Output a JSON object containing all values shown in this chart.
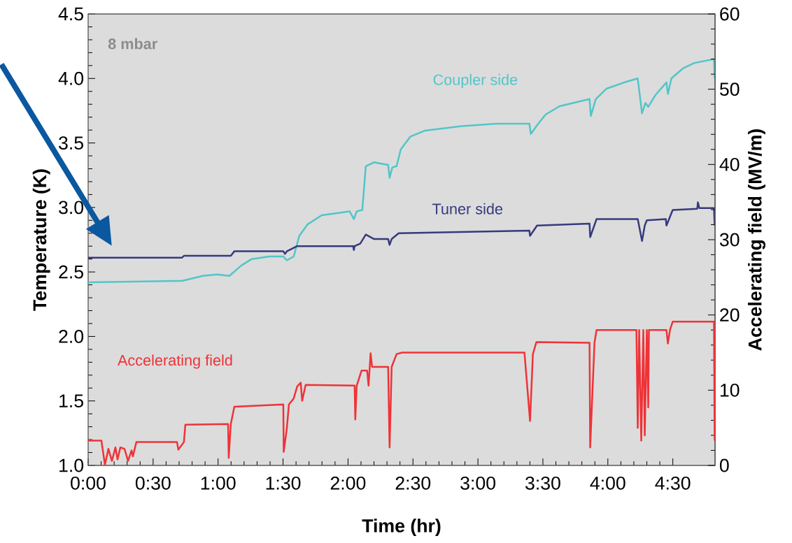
{
  "chart_data": {
    "type": "line",
    "xlabel": "Time (hr)",
    "ylabel": "Temperature (K)",
    "y2label": "Accelerating field (MV/m)",
    "xlim": [
      0,
      4.825
    ],
    "xticks": [
      {
        "value": 0,
        "label": "0:00"
      },
      {
        "value": 0.5,
        "label": "0:30"
      },
      {
        "value": 1,
        "label": "1:00"
      },
      {
        "value": 1.5,
        "label": "1:30"
      },
      {
        "value": 2,
        "label": "2:00"
      },
      {
        "value": 2.5,
        "label": "2:30"
      },
      {
        "value": 3,
        "label": "3:00"
      },
      {
        "value": 3.5,
        "label": "3:30"
      },
      {
        "value": 4,
        "label": "4:00"
      },
      {
        "value": 4.5,
        "label": "4:30"
      }
    ],
    "ylim": [
      1,
      4.5
    ],
    "yticks": [
      {
        "value": 1,
        "label": "1.0"
      },
      {
        "value": 1.5,
        "label": "1.5"
      },
      {
        "value": 2,
        "label": "2.0"
      },
      {
        "value": 2.5,
        "label": "2.5"
      },
      {
        "value": 3,
        "label": "3.0"
      },
      {
        "value": 3.5,
        "label": "3.5"
      },
      {
        "value": 4,
        "label": "4.0"
      },
      {
        "value": 4.5,
        "label": "4.5"
      }
    ],
    "y2lim": [
      0,
      60
    ],
    "y2ticks": [
      0,
      10,
      20,
      30,
      40,
      50,
      60
    ],
    "annotations": [
      "8 mbar"
    ],
    "series": [
      {
        "name": "Coupler side",
        "color": "#52c5c8",
        "x": [
          0,
          0.667,
          0.721,
          0.883,
          0.99,
          1.087,
          1.179,
          1.259,
          1.394,
          1.502,
          1.529,
          1.582,
          1.625,
          1.69,
          1.798,
          2.013,
          2.045,
          2.067,
          2.11,
          2.137,
          2.201,
          2.309,
          2.32,
          2.341,
          2.374,
          2.406,
          2.481,
          2.589,
          2.874,
          3.143,
          3.396,
          3.407,
          3.45,
          3.52,
          3.628,
          3.859,
          3.869,
          3.907,
          3.988,
          4.128,
          4.23,
          4.263,
          4.289,
          4.311,
          4.365,
          4.451,
          4.462,
          4.489,
          4.58,
          4.666,
          4.817,
          4.822
        ],
        "values": [
          2.42,
          2.43,
          2.43,
          2.47,
          2.48,
          2.47,
          2.55,
          2.6,
          2.62,
          2.62,
          2.59,
          2.62,
          2.78,
          2.87,
          2.94,
          2.97,
          2.91,
          2.97,
          2.98,
          3.32,
          3.35,
          3.33,
          3.23,
          3.31,
          3.32,
          3.45,
          3.55,
          3.595,
          3.63,
          3.65,
          3.65,
          3.57,
          3.63,
          3.72,
          3.785,
          3.84,
          3.71,
          3.84,
          3.92,
          3.97,
          4.0,
          3.73,
          3.81,
          3.78,
          3.87,
          3.97,
          3.88,
          4.0,
          4.08,
          4.12,
          4.15,
          4.0
        ]
      },
      {
        "name": "Tuner side",
        "color": "#363a7e",
        "x": [
          0,
          0.721,
          0.737,
          1.098,
          1.125,
          1.502,
          1.515,
          1.529,
          1.609,
          2.04,
          2.045,
          2.051,
          2.094,
          2.137,
          2.201,
          2.309,
          2.32,
          2.336,
          2.39,
          3.396,
          3.401,
          3.455,
          3.859,
          3.864,
          3.913,
          4.23,
          4.263,
          4.284,
          4.3,
          4.446,
          4.451,
          4.499,
          4.688,
          4.693,
          4.704,
          4.817,
          4.822
        ],
        "values": [
          2.61,
          2.61,
          2.625,
          2.625,
          2.66,
          2.66,
          2.64,
          2.66,
          2.7,
          2.7,
          2.67,
          2.7,
          2.72,
          2.79,
          2.755,
          2.755,
          2.71,
          2.755,
          2.8,
          2.82,
          2.78,
          2.86,
          2.875,
          2.77,
          2.91,
          2.91,
          2.74,
          2.86,
          2.9,
          2.91,
          2.86,
          2.98,
          2.99,
          3.04,
          2.995,
          2.995,
          2.86
        ]
      },
      {
        "name": "Accelerating field",
        "color": "#ee3338",
        "axis": "y2",
        "x": [
          0,
          0.102,
          0.129,
          0.156,
          0.183,
          0.21,
          0.226,
          0.248,
          0.28,
          0.307,
          0.334,
          0.344,
          0.371,
          0.684,
          0.694,
          0.737,
          0.748,
          1.077,
          1.082,
          1.098,
          1.125,
          1.502,
          1.505,
          1.529,
          1.545,
          1.582,
          1.609,
          1.636,
          1.647,
          1.674,
          2.051,
          2.056,
          2.067,
          2.104,
          2.147,
          2.158,
          2.174,
          2.185,
          2.309,
          2.32,
          2.336,
          2.374,
          2.417,
          3.358,
          3.401,
          3.423,
          3.45,
          3.859,
          3.864,
          3.897,
          3.913,
          4.22,
          4.23,
          4.241,
          4.257,
          4.273,
          4.284,
          4.3,
          4.311,
          4.316,
          4.451,
          4.462,
          4.478,
          4.499,
          4.817,
          4.822
        ],
        "values": [
          3.3,
          3.3,
          0.1,
          2.2,
          0.6,
          2.4,
          0.8,
          2.4,
          2.2,
          0.6,
          2.0,
          1.2,
          3.1,
          3.1,
          2.1,
          3.1,
          5.4,
          5.5,
          1.0,
          5.5,
          7.8,
          8.1,
          1.8,
          4.9,
          8.1,
          8.9,
          10.5,
          11.0,
          8.6,
          10.7,
          10.6,
          6.1,
          10.6,
          12.6,
          12.6,
          10.6,
          14.9,
          13.1,
          13.1,
          2.4,
          13.1,
          14.8,
          15.0,
          15.0,
          5.9,
          14.8,
          16.4,
          16.3,
          2.4,
          16.3,
          18.0,
          18.0,
          5.0,
          18.0,
          3.3,
          18.0,
          4.0,
          18.0,
          7.7,
          18.0,
          18.0,
          16.2,
          18.0,
          19.1,
          19.1,
          3.3
        ]
      }
    ]
  }
}
